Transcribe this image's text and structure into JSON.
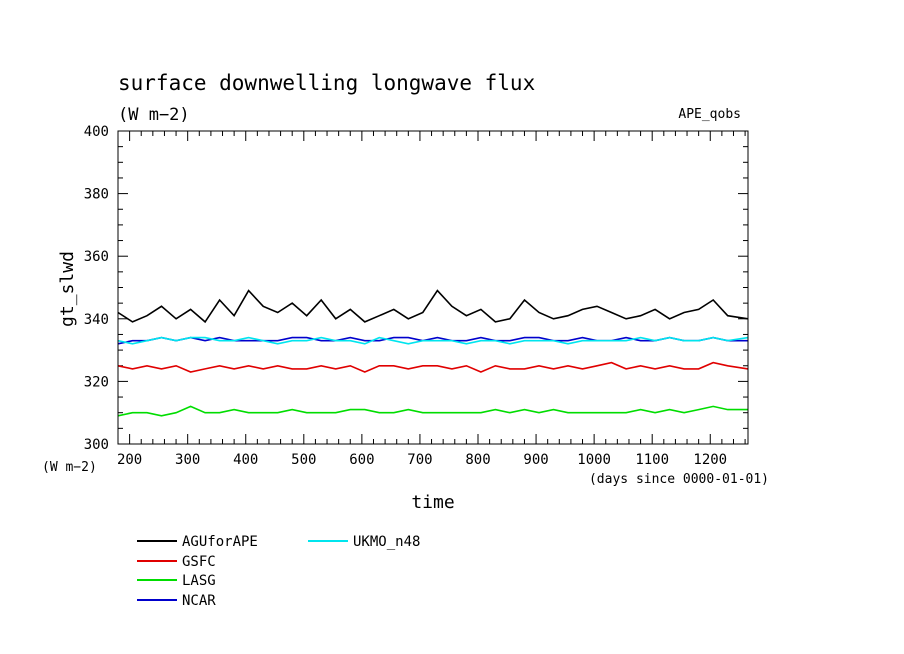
{
  "header": {
    "title": "surface downwelling longwave flux",
    "units": "(W m−2)",
    "tag": "APE_qobs"
  },
  "chart_data": {
    "type": "line",
    "title": "surface downwelling longwave flux",
    "xlabel": "time",
    "x_units": "(days since 0000-01-01)",
    "ylabel": "gt_slwd",
    "y_units": "(W m−2)",
    "xlim": [
      180,
      1265
    ],
    "ylim": [
      300,
      400
    ],
    "x_ticks": [
      "200",
      "300",
      "400",
      "500",
      "600",
      "700",
      "800",
      "900",
      "1000",
      "1100",
      "1200"
    ],
    "y_ticks": [
      "300",
      "320",
      "340",
      "360",
      "380",
      "400"
    ],
    "grid": false,
    "legend_position": "bottom-left",
    "x": [
      180,
      205,
      230,
      255,
      280,
      305,
      330,
      355,
      380,
      405,
      430,
      455,
      480,
      505,
      530,
      555,
      580,
      605,
      630,
      655,
      680,
      705,
      730,
      755,
      780,
      805,
      830,
      855,
      880,
      905,
      930,
      955,
      980,
      1005,
      1030,
      1055,
      1080,
      1105,
      1130,
      1155,
      1180,
      1205,
      1230,
      1265
    ],
    "series": [
      {
        "name": "AGUforAPE",
        "color": "#000000",
        "values": [
          342,
          339,
          341,
          344,
          340,
          343,
          339,
          346,
          341,
          349,
          344,
          342,
          345,
          341,
          346,
          340,
          343,
          339,
          341,
          343,
          340,
          342,
          349,
          344,
          341,
          343,
          339,
          340,
          346,
          342,
          340,
          341,
          343,
          344,
          342,
          340,
          341,
          343,
          340,
          342,
          343,
          346,
          341,
          340
        ]
      },
      {
        "name": "GSFC",
        "color": "#e00000",
        "values": [
          325,
          324,
          325,
          324,
          325,
          323,
          324,
          325,
          324,
          325,
          324,
          325,
          324,
          324,
          325,
          324,
          325,
          323,
          325,
          325,
          324,
          325,
          325,
          324,
          325,
          323,
          325,
          324,
          324,
          325,
          324,
          325,
          324,
          325,
          326,
          324,
          325,
          324,
          325,
          324,
          324,
          326,
          325,
          324
        ]
      },
      {
        "name": "LASG",
        "color": "#00dd00",
        "values": [
          309,
          310,
          310,
          309,
          310,
          312,
          310,
          310,
          311,
          310,
          310,
          310,
          311,
          310,
          310,
          310,
          311,
          311,
          310,
          310,
          311,
          310,
          310,
          310,
          310,
          310,
          311,
          310,
          311,
          310,
          311,
          310,
          310,
          310,
          310,
          310,
          311,
          310,
          311,
          310,
          311,
          312,
          311,
          311
        ]
      },
      {
        "name": "NCAR",
        "color": "#0000cc",
        "values": [
          332,
          333,
          333,
          334,
          333,
          334,
          333,
          334,
          333,
          333,
          333,
          333,
          334,
          334,
          333,
          333,
          334,
          333,
          333,
          334,
          334,
          333,
          334,
          333,
          333,
          334,
          333,
          333,
          334,
          334,
          333,
          333,
          334,
          333,
          333,
          334,
          333,
          333,
          334,
          333,
          333,
          334,
          333,
          333
        ]
      },
      {
        "name": "UKMO_n48",
        "color": "#00e5ee",
        "values": [
          333,
          332,
          333,
          334,
          333,
          334,
          334,
          333,
          333,
          334,
          333,
          332,
          333,
          333,
          334,
          333,
          333,
          332,
          334,
          333,
          332,
          333,
          333,
          333,
          332,
          333,
          333,
          332,
          333,
          333,
          333,
          332,
          333,
          333,
          333,
          333,
          334,
          333,
          334,
          333,
          333,
          334,
          333,
          334
        ]
      }
    ]
  }
}
